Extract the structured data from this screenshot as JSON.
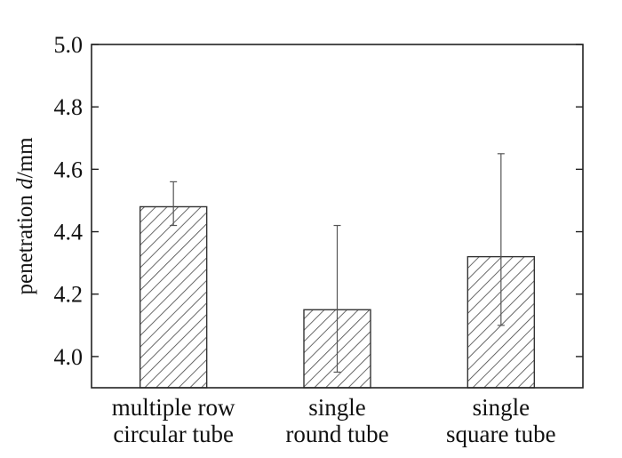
{
  "chart_data": {
    "type": "bar",
    "title": "",
    "xlabel": "",
    "ylabel": {
      "prefix": "penetration ",
      "var": "d",
      "suffix": "/mm"
    },
    "categories": [
      [
        "multiple row",
        "circular tube"
      ],
      [
        "single",
        "round tube"
      ],
      [
        "single",
        "square tube"
      ]
    ],
    "values": [
      4.48,
      4.15,
      4.32
    ],
    "error_low": [
      4.42,
      3.95,
      4.1
    ],
    "error_high": [
      4.56,
      4.42,
      4.65
    ],
    "ylim": [
      3.9,
      5.0
    ],
    "yticks": [
      "4.0",
      "4.2",
      "4.4",
      "4.6",
      "4.8",
      "5.0"
    ],
    "bar_fill": "hatched",
    "bar_color": "#333333",
    "grid": false,
    "legend": "none"
  }
}
